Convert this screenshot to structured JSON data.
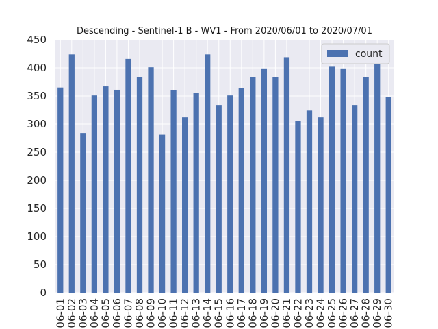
{
  "chart_data": {
    "type": "bar",
    "title": "Descending - Sentinel-1 B - WV1 - From 2020/06/01 to 2020/07/01",
    "xlabel": "",
    "ylabel": "",
    "ylim": [
      0,
      450
    ],
    "yticks": [
      0,
      50,
      100,
      150,
      200,
      250,
      300,
      350,
      400,
      450
    ],
    "grid": true,
    "legend_placement": "top-right",
    "bar_color": "#4c72b0",
    "plot_background": "#eaeaf2",
    "categories": [
      "06-01",
      "06-02",
      "06-03",
      "06-04",
      "06-05",
      "06-06",
      "06-07",
      "06-08",
      "06-09",
      "06-10",
      "06-11",
      "06-12",
      "06-13",
      "06-14",
      "06-15",
      "06-16",
      "06-17",
      "06-18",
      "06-19",
      "06-20",
      "06-21",
      "06-22",
      "06-23",
      "06-24",
      "06-25",
      "06-26",
      "06-27",
      "06-28",
      "06-29",
      "06-30"
    ],
    "series": [
      {
        "name": "count",
        "values": [
          365,
          424,
          284,
          351,
          367,
          361,
          416,
          383,
          401,
          281,
          360,
          312,
          356,
          424,
          334,
          351,
          364,
          384,
          399,
          383,
          419,
          306,
          324,
          312,
          402,
          399,
          334,
          384,
          421,
          348
        ]
      }
    ]
  }
}
